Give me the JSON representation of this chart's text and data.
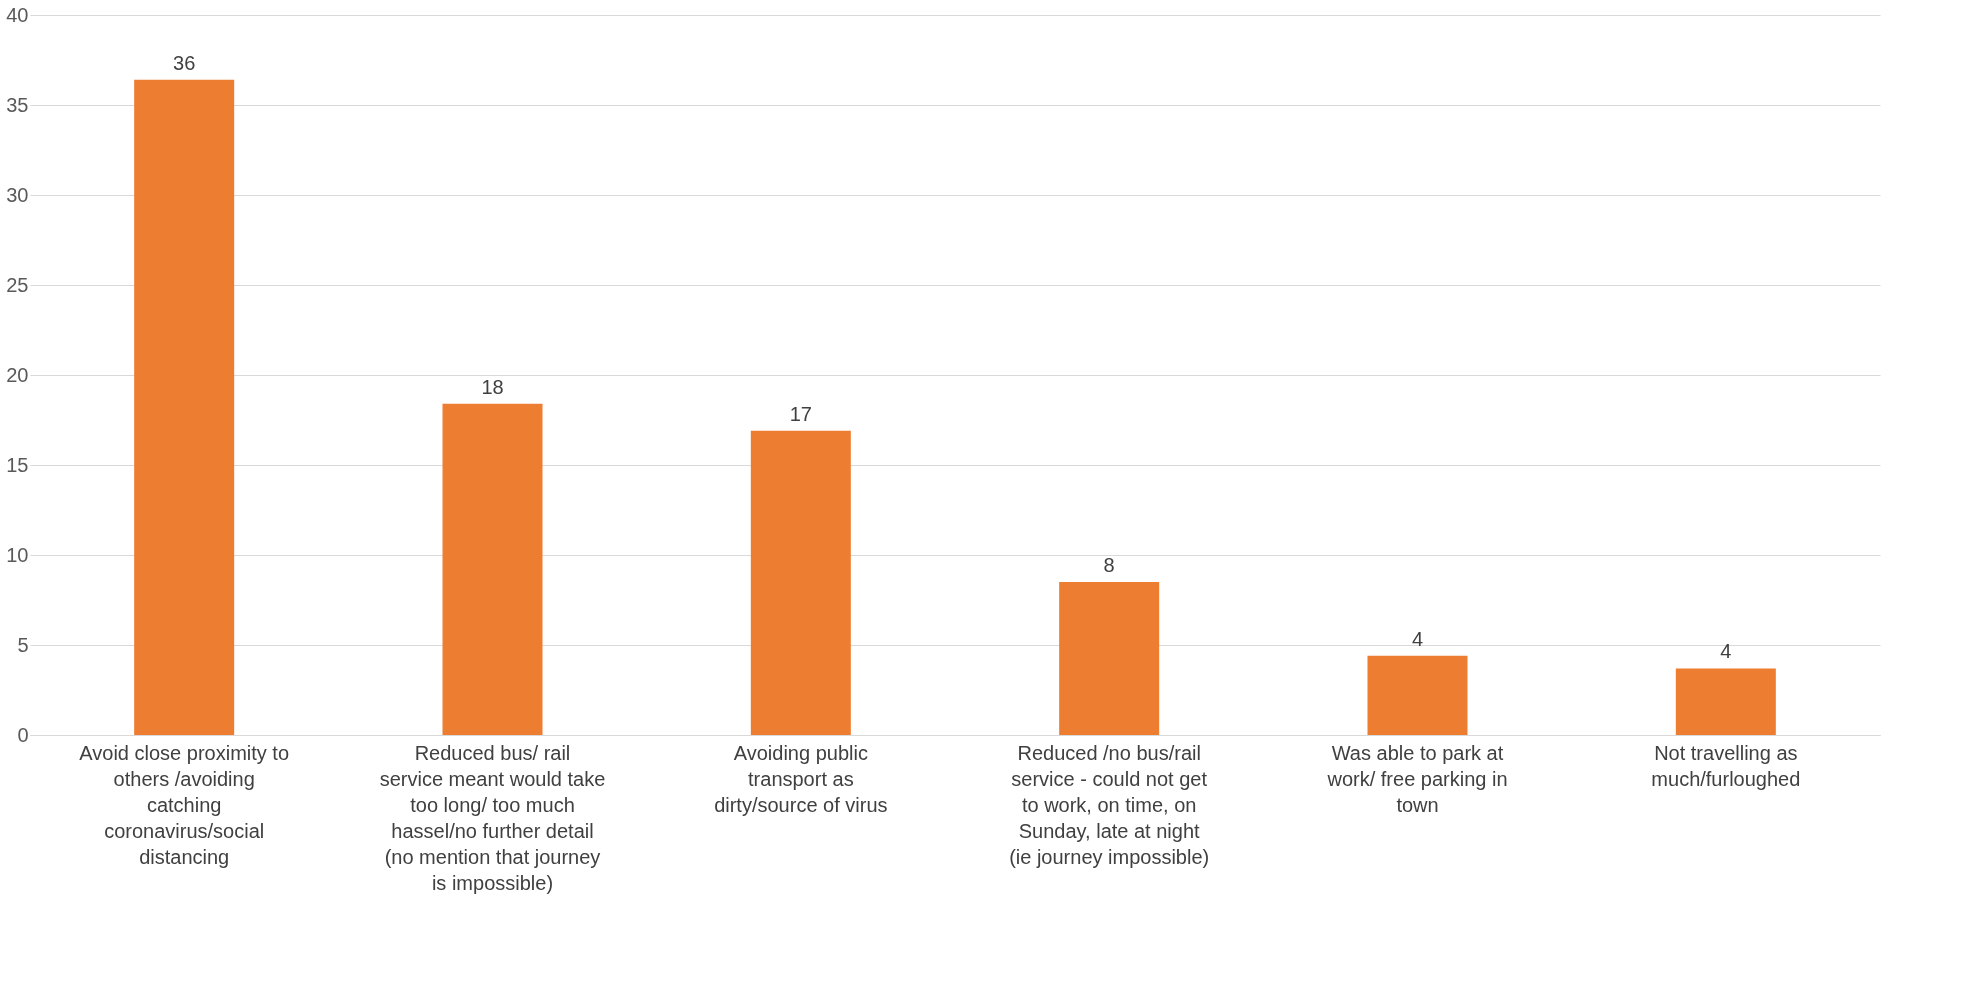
{
  "chart_data": {
    "type": "bar",
    "categories": [
      "Avoid close proximity to others /avoiding catching coronavirus/social distancing",
      "Reduced bus/ rail service meant would take too long/ too much hassel/no further detail (no mention that journey is impossible)",
      "Avoiding public transport as dirty/source of virus",
      "Reduced /no bus/rail service - could not get to work, on time, on Sunday, late at night (ie journey impossible)",
      "Was able to park at work/ free parking in town",
      "Not travelling as much/furloughed"
    ],
    "values": [
      36.4,
      18.4,
      16.9,
      8.5,
      4.4,
      3.7
    ],
    "value_labels": [
      "36",
      "18",
      "17",
      "8",
      "4",
      "4"
    ],
    "color": "#ed7d31",
    "ylim": [
      0,
      40
    ],
    "yticks": [
      0,
      5,
      10,
      15,
      20,
      25,
      30,
      35,
      40
    ],
    "grid": "y"
  }
}
